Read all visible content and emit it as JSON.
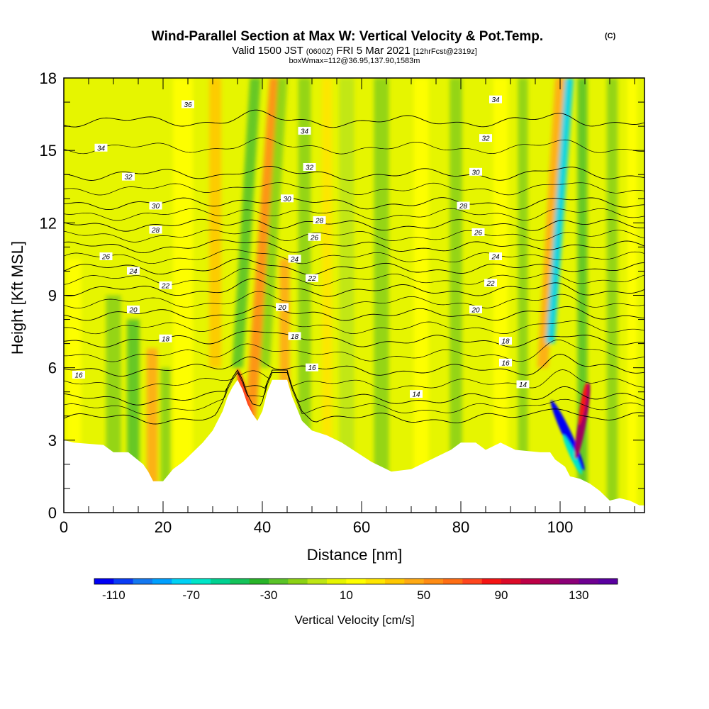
{
  "title": "Wind-Parallel Section at Max W: Vertical Velocity & Pot.Temp.",
  "title_mark": "(C)",
  "subtitle_prefix": "Valid 1500 JST",
  "subtitle_utc": "(0600Z)",
  "subtitle_date": "FRI 5 Mar 2021",
  "subtitle_fcst": "[12hrFcst@2319z]",
  "subtitle2": "boxWmax=112@36.95,137.90,1583m",
  "chart_data": {
    "type": "heatmap",
    "xlabel": "Distance [nm]",
    "ylabel": "Height [Kft MSL]",
    "xlim": [
      0,
      117
    ],
    "ylim": [
      0,
      18
    ],
    "x_ticks": [
      "0",
      "20",
      "40",
      "60",
      "80",
      "100"
    ],
    "x_tick_values": [
      0,
      20,
      40,
      60,
      80,
      100
    ],
    "y_ticks": [
      "0",
      "3",
      "6",
      "9",
      "12",
      "15",
      "18"
    ],
    "y_tick_values": [
      0,
      3,
      6,
      9,
      12,
      15,
      18
    ],
    "colorbar": {
      "label": "Vertical Velocity [cm/s]",
      "range": [
        -120,
        150
      ],
      "step": 10,
      "tick_labels": [
        "-110",
        "-70",
        "-30",
        "10",
        "50",
        "90",
        "130"
      ],
      "tick_values": [
        -110,
        -70,
        -30,
        10,
        50,
        90,
        130
      ],
      "colors": [
        "#0000f5",
        "#0a3cf5",
        "#1478f0",
        "#00a0ff",
        "#00d2f5",
        "#00e6c8",
        "#00d291",
        "#14c35a",
        "#28b428",
        "#5ac328",
        "#8cd214",
        "#bee614",
        "#e6f500",
        "#ffff00",
        "#ffe600",
        "#ffc800",
        "#ffaa14",
        "#ff8c14",
        "#ff6e14",
        "#ff461e",
        "#f51414",
        "#dc0a28",
        "#be0046",
        "#a0005f",
        "#8c0078",
        "#6e0091",
        "#5a00a0"
      ]
    },
    "terrain": [
      [
        0,
        3.0
      ],
      [
        2,
        2.9
      ],
      [
        8,
        2.8
      ],
      [
        10,
        2.5
      ],
      [
        13,
        2.5
      ],
      [
        16,
        2.0
      ],
      [
        17,
        1.7
      ],
      [
        18,
        1.3
      ],
      [
        20,
        1.3
      ],
      [
        22,
        1.8
      ],
      [
        24,
        2.1
      ],
      [
        26,
        2.5
      ],
      [
        28,
        2.9
      ],
      [
        30,
        3.4
      ],
      [
        32,
        4.2
      ],
      [
        33,
        4.8
      ],
      [
        34,
        5.2
      ],
      [
        35,
        5.5
      ],
      [
        36,
        5.1
      ],
      [
        37,
        4.5
      ],
      [
        38,
        4.1
      ],
      [
        39,
        3.8
      ],
      [
        40,
        4.2
      ],
      [
        41,
        5.0
      ],
      [
        42,
        5.5
      ],
      [
        45,
        5.5
      ],
      [
        46,
        4.8
      ],
      [
        47,
        4.3
      ],
      [
        48,
        3.8
      ],
      [
        50,
        3.4
      ],
      [
        53,
        3.2
      ],
      [
        56,
        2.9
      ],
      [
        59,
        2.5
      ],
      [
        62,
        2.1
      ],
      [
        64,
        1.9
      ],
      [
        66,
        1.7
      ],
      [
        70,
        1.8
      ],
      [
        73,
        2.1
      ],
      [
        76,
        2.4
      ],
      [
        78,
        2.6
      ],
      [
        80,
        2.9
      ],
      [
        83,
        2.9
      ],
      [
        85,
        2.6
      ],
      [
        88,
        2.9
      ],
      [
        91,
        2.6
      ],
      [
        96,
        2.5
      ],
      [
        98,
        2.5
      ],
      [
        99,
        2.2
      ],
      [
        101,
        1.9
      ],
      [
        102,
        1.5
      ],
      [
        104,
        1.4
      ],
      [
        106,
        1.2
      ],
      [
        108,
        0.9
      ],
      [
        110,
        0.5
      ],
      [
        112,
        0.6
      ],
      [
        114,
        0.5
      ],
      [
        116,
        0.3
      ],
      [
        117,
        0.3
      ]
    ],
    "theta_contours": [
      {
        "value": 14,
        "base": 3.9
      },
      {
        "value": 16,
        "base": 4.7
      },
      {
        "value": 18,
        "base": 5.9
      },
      {
        "value": 20,
        "base": 7.1
      },
      {
        "value": 22,
        "base": 8.2
      },
      {
        "value": 24,
        "base": 9.2
      },
      {
        "value": 26,
        "base": 10.1
      },
      {
        "value": 28,
        "base": 11.0
      },
      {
        "value": 30,
        "base": 11.9
      },
      {
        "value": 32,
        "base": 12.8
      },
      {
        "value": 34,
        "base": 14.0
      },
      {
        "value": 36,
        "base": 16.2
      }
    ],
    "contour_labels": [
      {
        "text": "36",
        "x": 25,
        "y": 16.9
      },
      {
        "text": "34",
        "x": 7.5,
        "y": 15.1
      },
      {
        "text": "32",
        "x": 13,
        "y": 13.9
      },
      {
        "text": "30",
        "x": 18.5,
        "y": 12.7
      },
      {
        "text": "28",
        "x": 18.5,
        "y": 11.7
      },
      {
        "text": "26",
        "x": 8.5,
        "y": 10.6
      },
      {
        "text": "24",
        "x": 14,
        "y": 10.0
      },
      {
        "text": "22",
        "x": 20.5,
        "y": 9.4
      },
      {
        "text": "20",
        "x": 14,
        "y": 8.4
      },
      {
        "text": "18",
        "x": 20.5,
        "y": 7.2
      },
      {
        "text": "16",
        "x": 3,
        "y": 5.7
      },
      {
        "text": "34",
        "x": 48.5,
        "y": 15.8
      },
      {
        "text": "32",
        "x": 49.5,
        "y": 14.3
      },
      {
        "text": "30",
        "x": 45,
        "y": 13.0
      },
      {
        "text": "28",
        "x": 51.5,
        "y": 12.1
      },
      {
        "text": "26",
        "x": 50.5,
        "y": 11.4
      },
      {
        "text": "24",
        "x": 46.5,
        "y": 10.5
      },
      {
        "text": "22",
        "x": 50,
        "y": 9.7
      },
      {
        "text": "20",
        "x": 44,
        "y": 8.5
      },
      {
        "text": "18",
        "x": 46.5,
        "y": 7.3
      },
      {
        "text": "16",
        "x": 50,
        "y": 6.0
      },
      {
        "text": "14",
        "x": 71,
        "y": 4.9
      },
      {
        "text": "34",
        "x": 87,
        "y": 17.1
      },
      {
        "text": "32",
        "x": 85,
        "y": 15.5
      },
      {
        "text": "30",
        "x": 83,
        "y": 14.1
      },
      {
        "text": "28",
        "x": 80.5,
        "y": 12.7
      },
      {
        "text": "26",
        "x": 83.5,
        "y": 11.6
      },
      {
        "text": "24",
        "x": 87,
        "y": 10.6
      },
      {
        "text": "22",
        "x": 86,
        "y": 9.5
      },
      {
        "text": "20",
        "x": 83,
        "y": 8.4
      },
      {
        "text": "18",
        "x": 89,
        "y": 7.1
      },
      {
        "text": "16",
        "x": 89,
        "y": 6.2
      },
      {
        "text": "14",
        "x": 92.5,
        "y": 5.3
      }
    ],
    "bands": [
      {
        "x": 2,
        "w": 3,
        "bot": 0,
        "top": 10.5,
        "w_cms": 15,
        "tilt": 0
      },
      {
        "x": 10,
        "w": 3,
        "bot": 0,
        "top": 9,
        "w_cms": -12,
        "tilt": 0
      },
      {
        "x": 14,
        "w": 2.5,
        "bot": 0,
        "top": 8,
        "w_cms": -25,
        "tilt": 0
      },
      {
        "x": 17.8,
        "w": 2.2,
        "bot": 0,
        "top": 6.8,
        "w_cms": 40,
        "tilt": 0
      },
      {
        "x": 20.5,
        "w": 2,
        "bot": 0,
        "top": 6,
        "w_cms": -12,
        "tilt": 0
      },
      {
        "x": 24,
        "w": 4,
        "bot": 0,
        "top": 18,
        "w_cms": 12,
        "tilt": 0
      },
      {
        "x": 30.5,
        "w": 2.4,
        "bot": 6,
        "top": 18,
        "w_cms": 32,
        "tilt": 0
      },
      {
        "x": 35,
        "w": 2.2,
        "bot": 6,
        "top": 18,
        "w_cms": -25,
        "tilt": 0.3
      },
      {
        "x": 37.5,
        "w": 2.2,
        "bot": 3.5,
        "top": 18,
        "w_cms": 55,
        "tilt": 0.35
      },
      {
        "x": 40.5,
        "w": 2,
        "bot": 6,
        "top": 18,
        "w_cms": -15,
        "tilt": 0.3
      },
      {
        "x": 44.5,
        "w": 2,
        "bot": 4.5,
        "top": 10.5,
        "w_cms": 45,
        "tilt": 0
      },
      {
        "x": 48.5,
        "w": 2.5,
        "bot": 0,
        "top": 18,
        "w_cms": -15,
        "tilt": 0
      },
      {
        "x": 53,
        "w": 2,
        "bot": 0,
        "top": 18,
        "w_cms": 28,
        "tilt": 0
      },
      {
        "x": 57,
        "w": 3,
        "bot": 0,
        "top": 18,
        "w_cms": -10,
        "tilt": 0
      },
      {
        "x": 64,
        "w": 3,
        "bot": 0,
        "top": 18,
        "w_cms": -12,
        "tilt": 0
      },
      {
        "x": 72,
        "w": 3,
        "bot": 0,
        "top": 18,
        "w_cms": 12,
        "tilt": 0
      },
      {
        "x": 79,
        "w": 2.5,
        "bot": 0,
        "top": 18,
        "w_cms": -20,
        "tilt": 0
      },
      {
        "x": 88,
        "w": 3,
        "bot": 0,
        "top": 18,
        "w_cms": 10,
        "tilt": 0
      },
      {
        "x": 92.5,
        "w": 2,
        "bot": 0,
        "top": 18,
        "w_cms": -20,
        "tilt": 0
      },
      {
        "x": 96.5,
        "w": 2.2,
        "bot": 6,
        "top": 18,
        "w_cms": 40,
        "tilt": 0.3
      },
      {
        "x": 98,
        "w": 1.8,
        "bot": 7,
        "top": 18,
        "w_cms": -75,
        "tilt": 0.35
      },
      {
        "x": 104.5,
        "w": 2,
        "bot": 0,
        "top": 18,
        "w_cms": -25,
        "tilt": 0
      },
      {
        "x": 110.5,
        "w": 2.2,
        "bot": 0,
        "top": 18,
        "w_cms": -18,
        "tilt": 0
      },
      {
        "x": 114.5,
        "w": 2,
        "bot": 0,
        "top": 18,
        "w_cms": 12,
        "tilt": 0
      }
    ],
    "cores": [
      {
        "x": 101.5,
        "y": 3.2,
        "w_cms": -115,
        "rx": 0.9,
        "ry": 1.6,
        "rot": -25
      },
      {
        "x": 102.5,
        "y": 2.4,
        "w_cms": -65,
        "rx": 0.6,
        "ry": 0.9,
        "rot": -25
      },
      {
        "x": 104.5,
        "y": 3.8,
        "w_cms": 115,
        "rx": 0.8,
        "ry": 1.6,
        "rot": 10
      },
      {
        "x": 104.6,
        "y": 4.5,
        "w_cms": 85,
        "rx": 0.5,
        "ry": 0.9,
        "rot": 10
      },
      {
        "x": 36.5,
        "y": 4.8,
        "w_cms": 70,
        "rx": 0.7,
        "ry": 1.2,
        "rot": -15
      },
      {
        "x": 37.8,
        "y": 3.0,
        "w_cms": 55,
        "rx": 0.5,
        "ry": 1.0,
        "rot": 0
      }
    ]
  }
}
